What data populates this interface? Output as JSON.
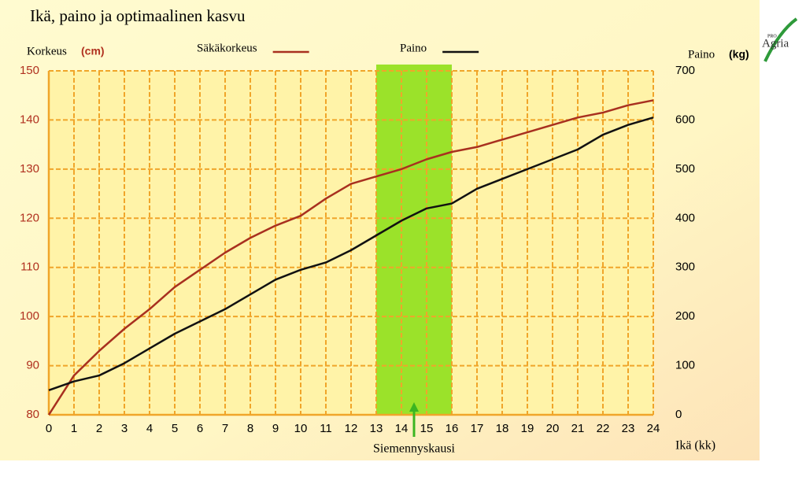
{
  "chart_data": {
    "type": "line",
    "title": "Ikä, paino ja optimaalinen kasvu",
    "y_label": "Korkeus",
    "y_unit": "(cm)",
    "y2_label": "Paino",
    "y2_unit": "(kg)",
    "x_label": "Ikä (kk)",
    "x": [
      0,
      1,
      2,
      3,
      4,
      5,
      6,
      7,
      8,
      9,
      10,
      11,
      12,
      13,
      14,
      15,
      16,
      17,
      18,
      19,
      20,
      21,
      22,
      23,
      24
    ],
    "xlim": [
      0,
      24
    ],
    "xticks": [
      0,
      1,
      2,
      3,
      4,
      5,
      6,
      7,
      8,
      9,
      10,
      11,
      12,
      13,
      14,
      15,
      16,
      17,
      18,
      19,
      20,
      21,
      22,
      23,
      24
    ],
    "ylim": [
      80,
      150
    ],
    "yticks": [
      80,
      90,
      100,
      110,
      120,
      130,
      140,
      150
    ],
    "y2lim": [
      0,
      700
    ],
    "y2ticks": [
      0,
      100,
      200,
      300,
      400,
      500,
      600,
      700
    ],
    "grid": true,
    "grid_color": "#f0a52a",
    "highlight": {
      "from": 13,
      "to": 16,
      "label": "Siemennyskausi",
      "color": "#9be22a",
      "arrow_color": "#3cb521"
    },
    "series": [
      {
        "name": "Säkäkorkeus",
        "color": "#a8301f",
        "values": [
          80,
          88,
          93,
          97.5,
          101.5,
          106,
          109.5,
          113,
          116,
          118.5,
          120.5,
          124,
          127,
          128.5,
          130,
          132,
          133.5,
          134.5,
          136,
          137.5,
          139,
          140.5,
          141.5,
          143,
          144
        ]
      },
      {
        "name": "Paino",
        "color": "#111111",
        "axis": "y2",
        "values": [
          50,
          68,
          80,
          105,
          135,
          165,
          190,
          215,
          245,
          275,
          295,
          310,
          335,
          365,
          395,
          420,
          430,
          460,
          480,
          500,
          520,
          540,
          570,
          590,
          605
        ]
      }
    ]
  },
  "logo": {
    "small": "PRO",
    "text": "Agria"
  }
}
